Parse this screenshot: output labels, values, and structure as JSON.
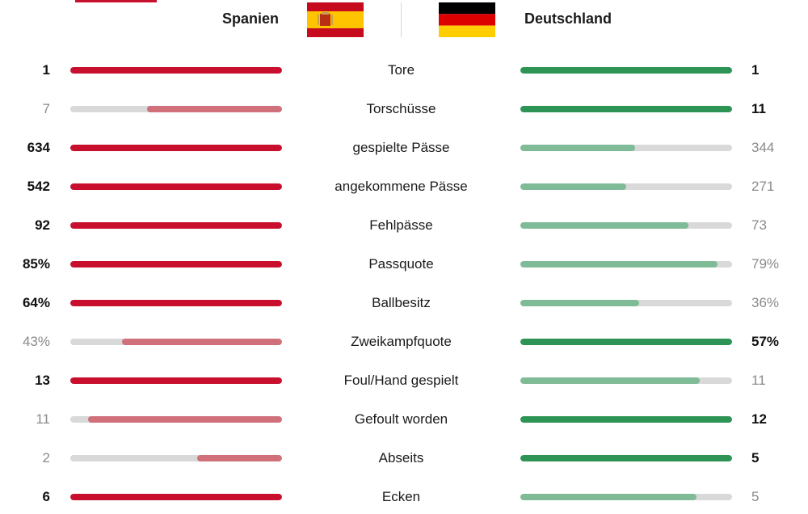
{
  "header": {
    "team_a": "Spanien",
    "team_b": "Deutschland",
    "flag_a_icon": "spain-flag-icon",
    "flag_b_icon": "germany-flag-icon"
  },
  "colors": {
    "team_a_strong": "#c8102e",
    "team_a_weak": "#d0707a",
    "team_b_strong": "#2e9455",
    "team_b_weak": "#7fbb96",
    "track": "#d9d9d9"
  },
  "chart_data": {
    "type": "bar",
    "series": [
      {
        "name": "Spanien",
        "values": [
          1,
          7,
          634,
          542,
          92,
          85,
          64,
          43,
          13,
          11,
          2,
          6
        ],
        "display": [
          "1",
          "7",
          "634",
          "542",
          "92",
          "85%",
          "64%",
          "43%",
          "13",
          "11",
          "2",
          "6"
        ]
      },
      {
        "name": "Deutschland",
        "values": [
          1,
          11,
          344,
          271,
          73,
          79,
          36,
          57,
          11,
          12,
          5,
          5
        ],
        "display": [
          "1",
          "11",
          "344",
          "271",
          "73",
          "79%",
          "36%",
          "57%",
          "11",
          "12",
          "5",
          "5"
        ]
      }
    ],
    "categories": [
      "Tore",
      "Torschüsse",
      "gespielte Pässe",
      "angekommene Pässe",
      "Fehlpässe",
      "Passquote",
      "Ballbesitz",
      "Zweikampfquote",
      "Foul/Hand gespielt",
      "Gefoult worden",
      "Abseits",
      "Ecken"
    ],
    "scale": "each bar relative to the larger of the two values in its row",
    "legend": "none"
  }
}
